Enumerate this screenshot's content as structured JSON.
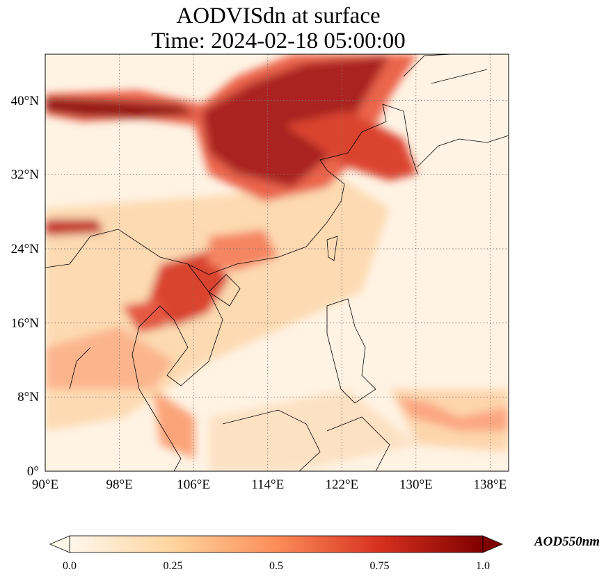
{
  "title": {
    "line1": "AODVISdn at surface",
    "line2": "Time: 2024-02-18 05:00:00"
  },
  "map": {
    "variable": "AODVISdn",
    "level": "surface",
    "colormap": "OrRd",
    "gridlines": true,
    "coastlines": true,
    "lon_range": [
      90,
      140
    ],
    "lat_range": [
      0,
      45
    ],
    "lon_ticks": [
      "90°E",
      "98°E",
      "106°E",
      "114°E",
      "122°E",
      "130°E",
      "138°E"
    ],
    "lat_ticks": [
      "0°",
      "8°N",
      "16°N",
      "24°N",
      "32°N",
      "40°N"
    ]
  },
  "colorbar": {
    "label": "AOD550nm",
    "ticks": [
      "0.0",
      "0.25",
      "0.5",
      "0.75",
      "1.0"
    ],
    "extend": "both",
    "range": [
      0,
      1
    ]
  },
  "colors": {
    "low": "#fff7ec",
    "mid_low": "#fdd49e",
    "mid": "#fc8d59",
    "high": "#d7301f",
    "max": "#7f0000"
  }
}
